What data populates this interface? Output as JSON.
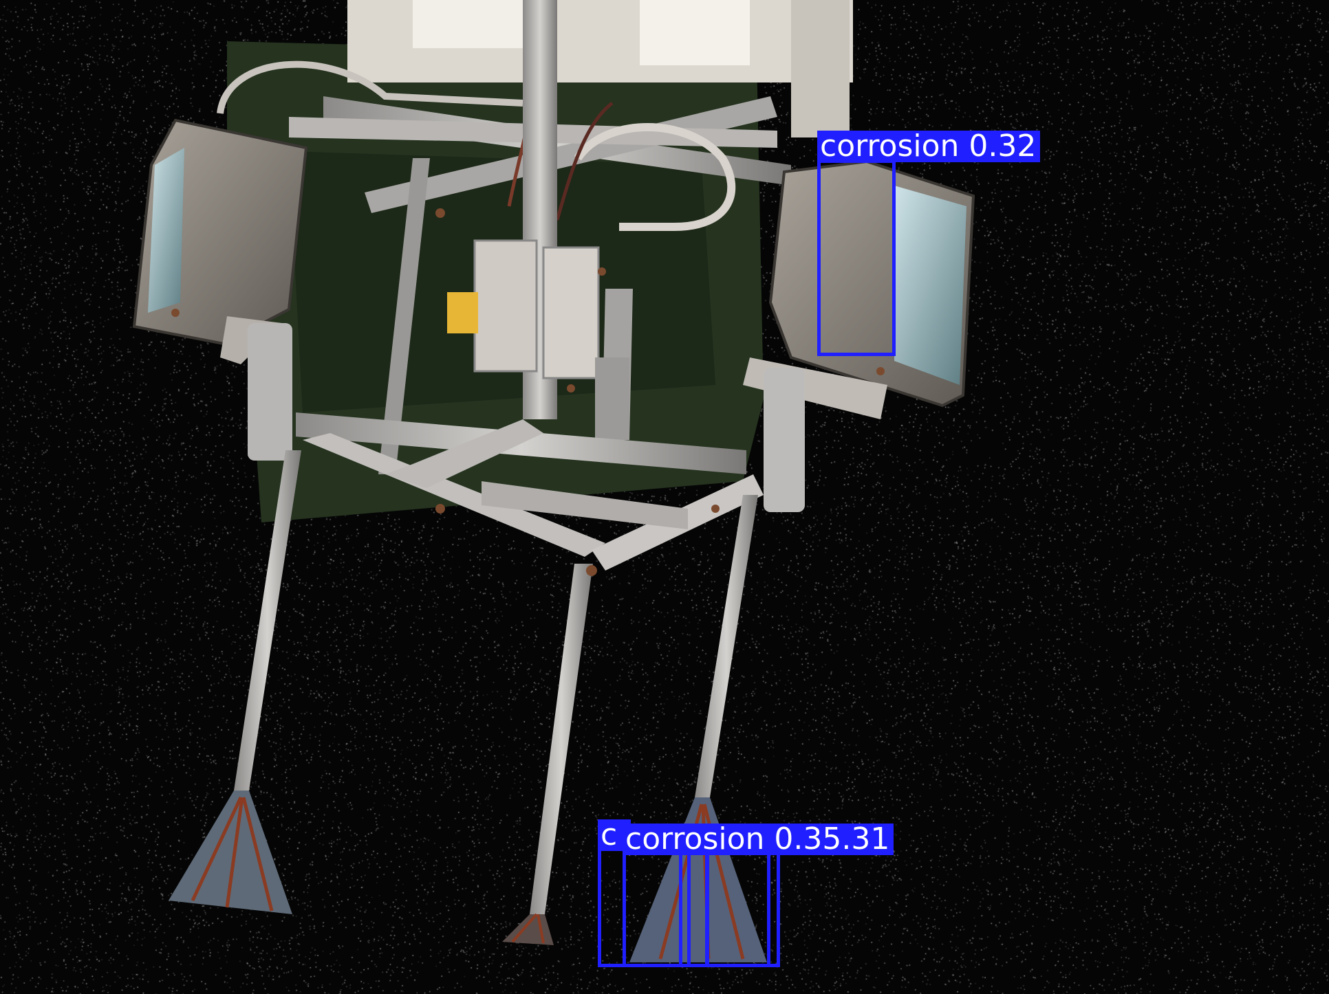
{
  "image": {
    "subject": "utility pole equipment bracket with lamp housings",
    "background_color": "#050505"
  },
  "detection": {
    "box_color": "#1f1fff",
    "label_text_color": "#ffffff",
    "items": [
      {
        "class": "corrosion",
        "score": "0.32",
        "label": "corrosion  0.32"
      },
      {
        "class": "corrosion",
        "score": "0.3",
        "label": "corrosion 0.3"
      },
      {
        "class": "corrosion",
        "score": "0.35",
        "label": "corrosion 0.35"
      },
      {
        "class": "corrosion",
        "score": "0.31",
        "label": "corrosion 0.31"
      }
    ],
    "overlap_label_lead": "c",
    "overlap_label_main": "corrosion 0.35.31"
  }
}
